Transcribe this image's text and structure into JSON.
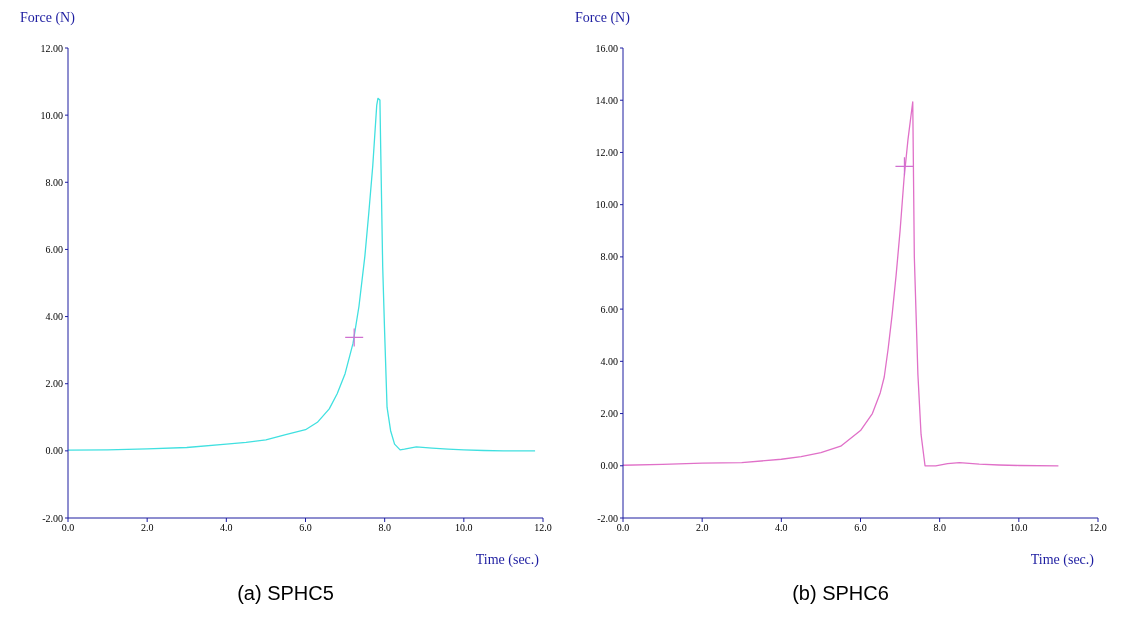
{
  "chart_data": [
    {
      "type": "line",
      "title": "(a) SPHC5",
      "xlabel": "Time (sec.)",
      "ylabel": "Force (N)",
      "grid": false,
      "xlim": [
        0,
        12
      ],
      "xticks": [
        {
          "value": 0,
          "label": "0.0"
        },
        {
          "value": 2,
          "label": "2.0"
        },
        {
          "value": 4,
          "label": "4.0"
        },
        {
          "value": 6,
          "label": "6.0"
        },
        {
          "value": 8,
          "label": "8.0"
        },
        {
          "value": 10,
          "label": "10.0"
        },
        {
          "value": 12,
          "label": "12.0"
        }
      ],
      "ylim": [
        -2,
        12
      ],
      "yticks": [
        {
          "value": -2,
          "label": "-2.00"
        },
        {
          "value": 0,
          "label": "0.00"
        },
        {
          "value": 2,
          "label": "2.00"
        },
        {
          "value": 4,
          "label": "4.00"
        },
        {
          "value": 6,
          "label": "6.00"
        },
        {
          "value": 8,
          "label": "8.00"
        },
        {
          "value": 10,
          "label": "10.00"
        },
        {
          "value": 12,
          "label": "12.00"
        }
      ],
      "series": [
        {
          "color": "#40e0e0",
          "marker": "none",
          "x": [
            0,
            1,
            2,
            3,
            4,
            4.5,
            5,
            5.5,
            6,
            6.3,
            6.6,
            6.8,
            7.0,
            7.2,
            7.35,
            7.5,
            7.6,
            7.7,
            7.8,
            7.83,
            7.88,
            7.9,
            7.95,
            8.0,
            8.06,
            8.15,
            8.25,
            8.39,
            8.5,
            8.8,
            9.2,
            9.6,
            10,
            10.5,
            11,
            11.8
          ],
          "values": [
            0.02,
            0.03,
            0.06,
            0.1,
            0.2,
            0.25,
            0.33,
            0.48,
            0.63,
            0.85,
            1.25,
            1.7,
            2.3,
            3.2,
            4.3,
            5.8,
            7.1,
            8.5,
            10.3,
            10.5,
            10.45,
            9.0,
            5.5,
            3.5,
            1.3,
            0.6,
            0.2,
            0.03,
            0.05,
            0.12,
            0.08,
            0.05,
            0.03,
            0.01,
            0,
            0
          ]
        },
        {
          "type": "scatter",
          "color": "#d070d0",
          "marker": "cross",
          "x": [
            7.23
          ],
          "values": [
            3.38
          ]
        }
      ]
    },
    {
      "type": "line",
      "title": "(b) SPHC6",
      "xlabel": "Time (sec.)",
      "ylabel": "Force (N)",
      "grid": false,
      "xlim": [
        0,
        12
      ],
      "xticks": [
        {
          "value": 0,
          "label": "0.0"
        },
        {
          "value": 2,
          "label": "2.0"
        },
        {
          "value": 4,
          "label": "4.0"
        },
        {
          "value": 6,
          "label": "6.0"
        },
        {
          "value": 8,
          "label": "8.0"
        },
        {
          "value": 10,
          "label": "10.0"
        },
        {
          "value": 12,
          "label": "12.0"
        }
      ],
      "ylim": [
        -2,
        16
      ],
      "yticks": [
        {
          "value": -2,
          "label": "-2.00"
        },
        {
          "value": 0,
          "label": "0.00"
        },
        {
          "value": 2,
          "label": "2.00"
        },
        {
          "value": 4,
          "label": "4.00"
        },
        {
          "value": 6,
          "label": "6.00"
        },
        {
          "value": 8,
          "label": "8.00"
        },
        {
          "value": 10,
          "label": "10.00"
        },
        {
          "value": 12,
          "label": "12.00"
        },
        {
          "value": 14,
          "label": "14.00"
        },
        {
          "value": 16,
          "label": "16.00"
        }
      ],
      "series": [
        {
          "color": "#e070c8",
          "marker": "none",
          "x": [
            0,
            1,
            2,
            3,
            4,
            4.5,
            5,
            5.5,
            6,
            6.3,
            6.5,
            6.6,
            6.7,
            6.8,
            6.9,
            7.0,
            7.1,
            7.2,
            7.32,
            7.36,
            7.45,
            7.53,
            7.63,
            7.9,
            8.2,
            8.5,
            9,
            9.5,
            10,
            11
          ],
          "values": [
            0.02,
            0.05,
            0.1,
            0.12,
            0.25,
            0.35,
            0.5,
            0.75,
            1.35,
            2.0,
            2.8,
            3.4,
            4.5,
            5.8,
            7.3,
            9.0,
            11.0,
            12.5,
            13.94,
            8.0,
            3.5,
            1.2,
            0,
            0,
            0.08,
            0.12,
            0.06,
            0.03,
            0.01,
            0
          ]
        },
        {
          "type": "scatter",
          "color": "#d070d0",
          "marker": "cross",
          "x": [
            7.11
          ],
          "values": [
            11.47
          ]
        }
      ]
    }
  ]
}
